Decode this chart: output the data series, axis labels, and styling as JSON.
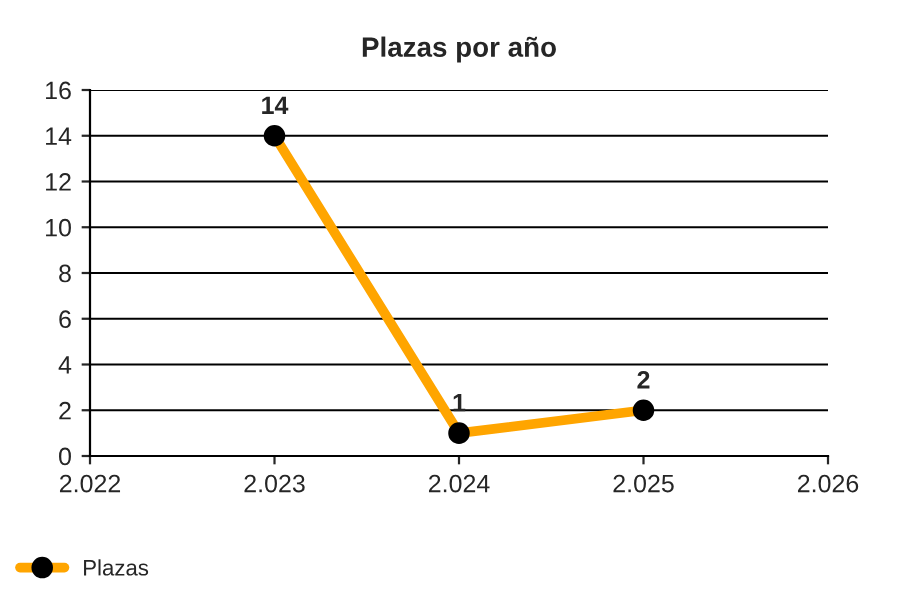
{
  "chart_data": {
    "type": "line",
    "title": "Plazas por año",
    "x": [
      2023,
      2024,
      2025
    ],
    "series": [
      {
        "name": "Plazas",
        "color": "#ffa500",
        "values": [
          14,
          1,
          2
        ]
      }
    ],
    "xlim": [
      2022,
      2026
    ],
    "xticks": [
      {
        "value": 2022,
        "label": "2.022"
      },
      {
        "value": 2023,
        "label": "2.023"
      },
      {
        "value": 2024,
        "label": "2.024"
      },
      {
        "value": 2025,
        "label": "2.025"
      },
      {
        "value": 2026,
        "label": "2.026"
      }
    ],
    "ylim": [
      0,
      16
    ],
    "yticks": [
      0,
      2,
      4,
      6,
      8,
      10,
      12,
      14,
      16
    ],
    "grid": "y",
    "legend": "bottom left",
    "marker": "circle",
    "line_style": "solid",
    "data_labels": true
  }
}
